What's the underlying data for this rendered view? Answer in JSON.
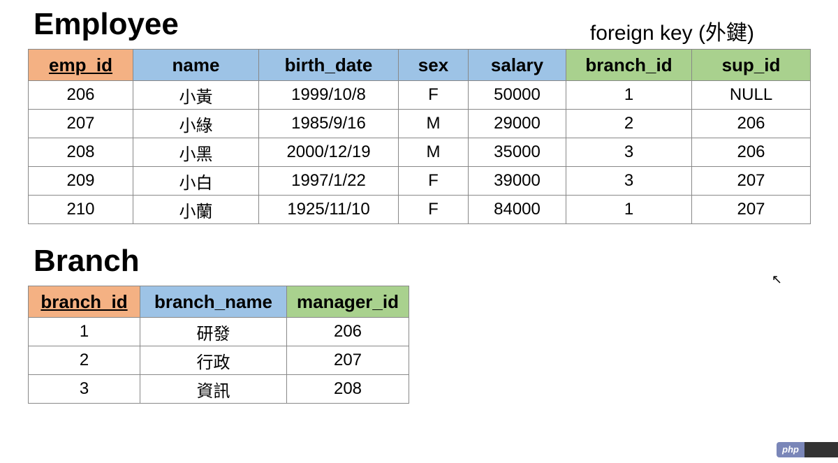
{
  "annotation": "foreign key (外鍵)",
  "employee": {
    "title": "Employee",
    "headers": {
      "emp_id": {
        "label": "emp_id",
        "bg": "bg-orange",
        "pk": true
      },
      "name": {
        "label": "name",
        "bg": "bg-blue",
        "pk": false
      },
      "birth_date": {
        "label": "birth_date",
        "bg": "bg-blue",
        "pk": false
      },
      "sex": {
        "label": "sex",
        "bg": "bg-blue",
        "pk": false
      },
      "salary": {
        "label": "salary",
        "bg": "bg-blue",
        "pk": false
      },
      "branch_id": {
        "label": "branch_id",
        "bg": "bg-green",
        "pk": false
      },
      "sup_id": {
        "label": "sup_id",
        "bg": "bg-green",
        "pk": false
      }
    },
    "rows": [
      {
        "emp_id": "206",
        "name": "小黃",
        "birth_date": "1999/10/8",
        "sex": "F",
        "salary": "50000",
        "branch_id": "1",
        "sup_id": "NULL"
      },
      {
        "emp_id": "207",
        "name": "小綠",
        "birth_date": "1985/9/16",
        "sex": "M",
        "salary": "29000",
        "branch_id": "2",
        "sup_id": "206"
      },
      {
        "emp_id": "208",
        "name": "小黑",
        "birth_date": "2000/12/19",
        "sex": "M",
        "salary": "35000",
        "branch_id": "3",
        "sup_id": "206"
      },
      {
        "emp_id": "209",
        "name": "小白",
        "birth_date": "1997/1/22",
        "sex": "F",
        "salary": "39000",
        "branch_id": "3",
        "sup_id": "207"
      },
      {
        "emp_id": "210",
        "name": "小蘭",
        "birth_date": "1925/11/10",
        "sex": "F",
        "salary": "84000",
        "branch_id": "1",
        "sup_id": "207"
      }
    ]
  },
  "branch": {
    "title": "Branch",
    "headers": {
      "branch_id": {
        "label": "branch_id",
        "bg": "bg-orange",
        "pk": true
      },
      "branch_name": {
        "label": "branch_name",
        "bg": "bg-blue",
        "pk": false
      },
      "manager_id": {
        "label": "manager_id",
        "bg": "bg-green",
        "pk": false
      }
    },
    "rows": [
      {
        "branch_id": "1",
        "branch_name": "研發",
        "manager_id": "206"
      },
      {
        "branch_id": "2",
        "branch_name": "行政",
        "manager_id": "207"
      },
      {
        "branch_id": "3",
        "branch_name": "資訊",
        "manager_id": "208"
      }
    ]
  },
  "colors": {
    "pk_header_bg": "#f4b183",
    "attr_header_bg": "#9dc3e6",
    "fk_header_bg": "#a9d18e",
    "border": "#888888",
    "background": "#ffffff",
    "text": "#000000"
  },
  "watermark": {
    "left": "php",
    "right": "  "
  }
}
